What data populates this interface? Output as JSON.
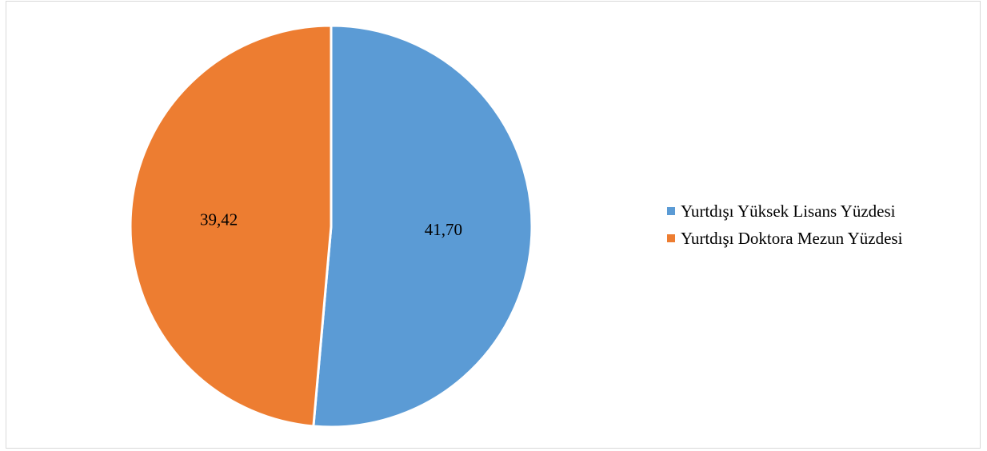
{
  "chart_data": {
    "type": "pie",
    "categories": [
      "Yurtdışı Yüksek Lisans Yüzdesi",
      "Yurtdışı Doktora Mezun Yüzdesi"
    ],
    "values": [
      41.7,
      39.42
    ],
    "data_labels": [
      "41,70",
      "39,42"
    ],
    "colors": [
      "#5b9bd5",
      "#ed7d31"
    ],
    "start_angle_deg": 0,
    "direction": "clockwise",
    "legend_position": "right"
  }
}
